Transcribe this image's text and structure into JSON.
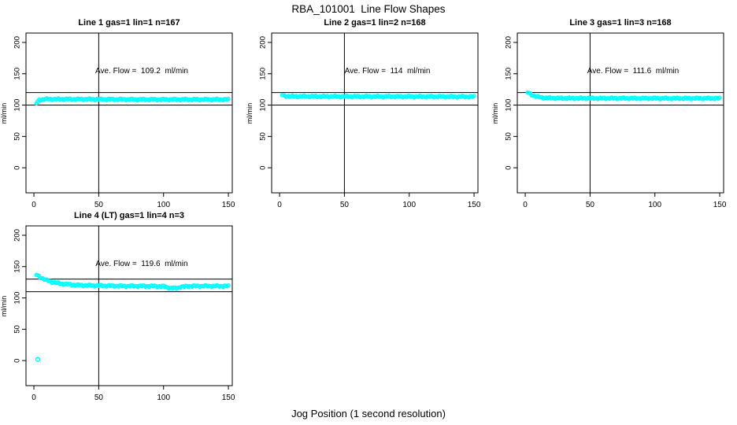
{
  "header": {
    "title": "RBA_101001  Line Flow Shapes"
  },
  "footer": {
    "xlabel": "Jog Position (1 second resolution)"
  },
  "style": {
    "point_color": "#00FFFF",
    "line_color": "#000000",
    "background": "#FFFFFF"
  },
  "chart_data": [
    {
      "type": "scatter",
      "title": "Line 1 gas=1 lin=1 n=167",
      "annotation": "Ave. Flow =  109.2  ml/min",
      "ave_flow_ml_min": 109.2,
      "n": 167,
      "ylabel": "ml/min",
      "xticks": [
        0,
        50,
        100,
        150
      ],
      "yticks": [
        0,
        50,
        100,
        150,
        200
      ],
      "xlim": [
        -6.1,
        153
      ],
      "ylim": [
        -40,
        215
      ],
      "vline_x": 50,
      "hlines": [
        100,
        120
      ],
      "point_color": "#00FFFF",
      "x_start": 2,
      "x_end": 150,
      "profile": [
        [
          2,
          103
        ],
        [
          4,
          108
        ],
        [
          8,
          109.5
        ],
        [
          40,
          109.5
        ],
        [
          80,
          109
        ],
        [
          150,
          109
        ]
      ],
      "outliers": []
    },
    {
      "type": "scatter",
      "title": "Line 2 gas=1 lin=2 n=168",
      "annotation": "Ave. Flow =  114  ml/min",
      "ave_flow_ml_min": 114,
      "n": 168,
      "ylabel": "ml/min",
      "xticks": [
        0,
        50,
        100,
        150
      ],
      "yticks": [
        0,
        50,
        100,
        150,
        200
      ],
      "xlim": [
        -6.1,
        153
      ],
      "ylim": [
        -40,
        215
      ],
      "vline_x": 50,
      "hlines": [
        100,
        120
      ],
      "point_color": "#00FFFF",
      "x_start": 2,
      "x_end": 150,
      "profile": [
        [
          2,
          116
        ],
        [
          4,
          114.5
        ],
        [
          10,
          114
        ],
        [
          80,
          113.7
        ],
        [
          150,
          113.5
        ]
      ],
      "outliers": []
    },
    {
      "type": "scatter",
      "title": "Line 3 gas=1 lin=3 n=168",
      "annotation": "Ave. Flow =  111.6  ml/min",
      "ave_flow_ml_min": 111.6,
      "n": 168,
      "ylabel": "ml/min",
      "xticks": [
        0,
        50,
        100,
        150
      ],
      "yticks": [
        0,
        50,
        100,
        150,
        200
      ],
      "xlim": [
        -6.1,
        153
      ],
      "ylim": [
        -40,
        215
      ],
      "vline_x": 50,
      "hlines": [
        100,
        120
      ],
      "point_color": "#00FFFF",
      "x_start": 2,
      "x_end": 150,
      "profile": [
        [
          2,
          120
        ],
        [
          3,
          119
        ],
        [
          6,
          115.5
        ],
        [
          10,
          113
        ],
        [
          16,
          111.5
        ],
        [
          30,
          111
        ],
        [
          150,
          110.8
        ]
      ],
      "outliers": []
    },
    {
      "type": "scatter",
      "title": "Line 4 (LT) gas=1 lin=4 n=3",
      "annotation": "Ave. Flow =  119.6  ml/min",
      "ave_flow_ml_min": 119.6,
      "n": 3,
      "ylabel": "ml/min",
      "xticks": [
        0,
        50,
        100,
        150
      ],
      "yticks": [
        0,
        50,
        100,
        150,
        200
      ],
      "xlim": [
        -6.1,
        153
      ],
      "ylim": [
        -40,
        215
      ],
      "vline_x": 50,
      "hlines": [
        110,
        130
      ],
      "point_color": "#00FFFF",
      "x_start": 2,
      "x_end": 150,
      "profile": [
        [
          2,
          137
        ],
        [
          5,
          133
        ],
        [
          10,
          128
        ],
        [
          15,
          125
        ],
        [
          22,
          122.5
        ],
        [
          30,
          121
        ],
        [
          40,
          120
        ],
        [
          55,
          119.5
        ],
        [
          70,
          119
        ],
        [
          85,
          119
        ],
        [
          100,
          118.5
        ],
        [
          105,
          116
        ],
        [
          110,
          115.5
        ],
        [
          113,
          117.5
        ],
        [
          120,
          119
        ],
        [
          135,
          119
        ],
        [
          150,
          119
        ]
      ],
      "outliers": [
        [
          3,
          2
        ]
      ]
    }
  ]
}
